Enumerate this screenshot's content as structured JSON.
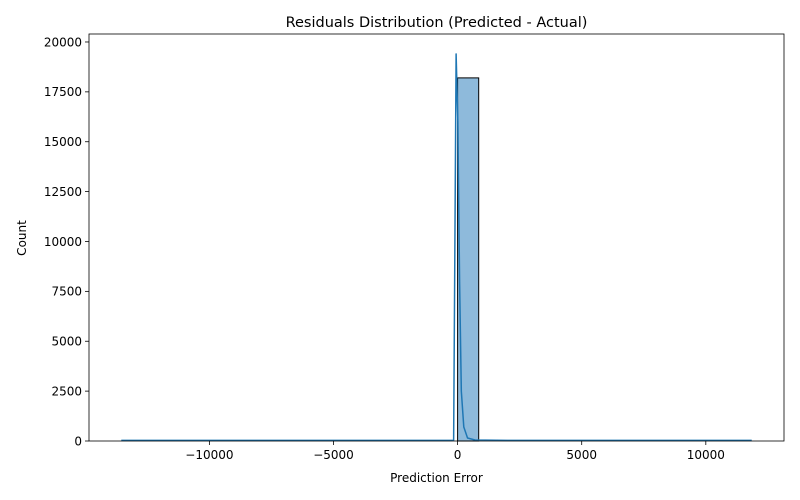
{
  "chart_data": {
    "type": "bar",
    "title": "Residuals Distribution (Predicted - Actual)",
    "xlabel": "Prediction Error",
    "ylabel": "Count",
    "xlim": [
      -14850,
      13150
    ],
    "ylim": [
      0,
      20400
    ],
    "xticks": [
      -10000,
      -5000,
      0,
      5000,
      10000
    ],
    "xtick_labels": [
      "−10000",
      "−5000",
      "0",
      "5000",
      "10000"
    ],
    "yticks": [
      0,
      2500,
      5000,
      7500,
      10000,
      12500,
      15000,
      17500,
      20000
    ],
    "ytick_labels": [
      "0",
      "2500",
      "5000",
      "7500",
      "10000",
      "12500",
      "15000",
      "17500",
      "20000"
    ],
    "histogram": {
      "bins": [
        {
          "x0": 0,
          "x1": 850,
          "count": 18200
        }
      ],
      "bar_fill": "#8ebadb",
      "bar_edge": "#000000"
    },
    "kde": {
      "color": "#1f77b4",
      "points": [
        [
          -13550,
          30
        ],
        [
          -5000,
          30
        ],
        [
          -300,
          30
        ],
        [
          -160,
          40
        ],
        [
          -60,
          19400
        ],
        [
          10,
          16000
        ],
        [
          80,
          8000
        ],
        [
          150,
          2500
        ],
        [
          250,
          700
        ],
        [
          400,
          150
        ],
        [
          700,
          50
        ],
        [
          2000,
          30
        ],
        [
          11850,
          30
        ]
      ]
    },
    "grid": false,
    "legend": "none"
  }
}
